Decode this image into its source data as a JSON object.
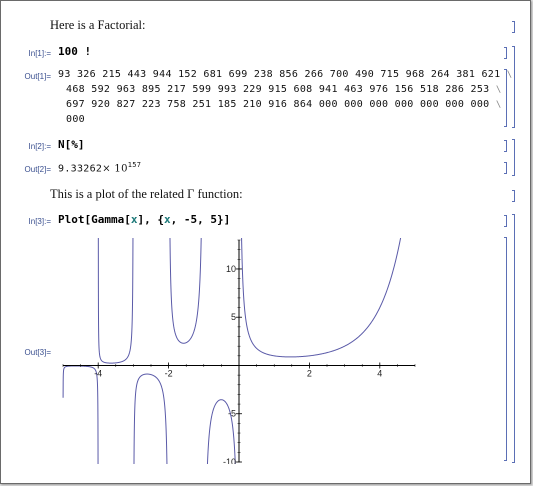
{
  "notebook": {
    "text1": "Here is a Factorial:",
    "in1_label": "In[1]:=",
    "in1_code": "100 !",
    "out1_label": "Out[1]=",
    "out1_lines": [
      "93 326 215 443 944 152 681 699 238 856 266 700 490 715 968 264 381 621",
      "468 592 963 895 217 599 993 229 915 608 941 463 976 156 518 286 253",
      "697 920 827 223 758 251 185 210 916 864 000 000 000 000 000 000 000",
      "000"
    ],
    "line_cont": "\\",
    "in2_label": "In[2]:=",
    "in2_code": "N[%]",
    "out2_label": "Out[2]=",
    "out2_mantissa": "9.33262",
    "out2_times": "× 10",
    "out2_exp": "157",
    "text2": "This is a plot of the related Γ function:",
    "in3_label": "In[3]:=",
    "in3_code_a": "Plot[Gamma[",
    "in3_sym1": "x",
    "in3_code_b": "], {",
    "in3_sym2": "x",
    "in3_code_c": ", -5, 5}]",
    "out3_label": "Out[3]="
  },
  "chart_data": {
    "type": "line",
    "function": "Gamma(x)",
    "xlim": [
      -5,
      5
    ],
    "ylim": [
      -10,
      13
    ],
    "xticks": [
      -4,
      -2,
      2,
      4
    ],
    "yticks": [
      -10,
      -5,
      5,
      10
    ],
    "tick_labels_x": [
      "-4",
      "-2",
      "2",
      "4"
    ],
    "tick_labels_y": [
      "-10",
      "-5",
      "5",
      "10"
    ],
    "grid": false,
    "color": "#5a5aa8"
  }
}
